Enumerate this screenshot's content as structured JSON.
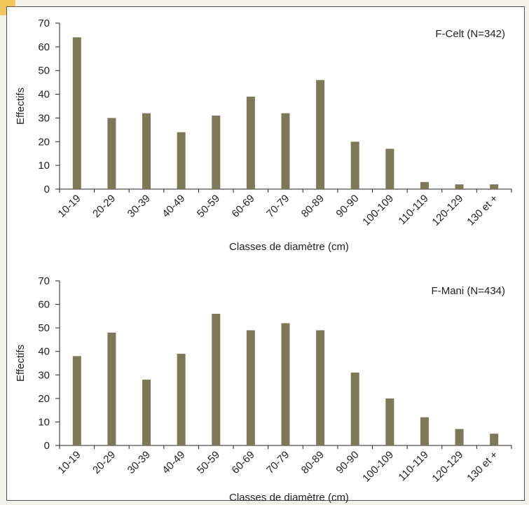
{
  "chart_data": [
    {
      "type": "bar",
      "annotation": "F-Celt (N=342)",
      "xlabel": "Classes de diamètre (cm)",
      "ylabel": "Effectifs",
      "ylim": [
        0,
        70
      ],
      "yticks": [
        0,
        10,
        20,
        30,
        40,
        50,
        60,
        70
      ],
      "grid": false,
      "bar_color": "#7d7856",
      "categories": [
        "10-19",
        "20-29",
        "30-39",
        "40-49",
        "50-59",
        "60-69",
        "70-79",
        "80-89",
        "90-90",
        "100-109",
        "110-119",
        "120-129",
        "130 et +"
      ],
      "values": [
        64,
        30,
        32,
        24,
        31,
        39,
        32,
        46,
        20,
        17,
        3,
        2,
        2
      ]
    },
    {
      "type": "bar",
      "annotation": "F-Mani (N=434)",
      "xlabel": "Classes de diamètre (cm)",
      "ylabel": "Effectifs",
      "ylim": [
        0,
        70
      ],
      "yticks": [
        0,
        10,
        20,
        30,
        40,
        50,
        60,
        70
      ],
      "grid": false,
      "bar_color": "#7d7856",
      "categories": [
        "10-19",
        "20-29",
        "30-39",
        "40-49",
        "50-59",
        "60-69",
        "70-79",
        "80-89",
        "90-90",
        "100-109",
        "110-119",
        "120-129",
        "130 et +"
      ],
      "values": [
        38,
        48,
        28,
        39,
        56,
        49,
        52,
        49,
        31,
        20,
        12,
        7,
        5
      ]
    }
  ]
}
